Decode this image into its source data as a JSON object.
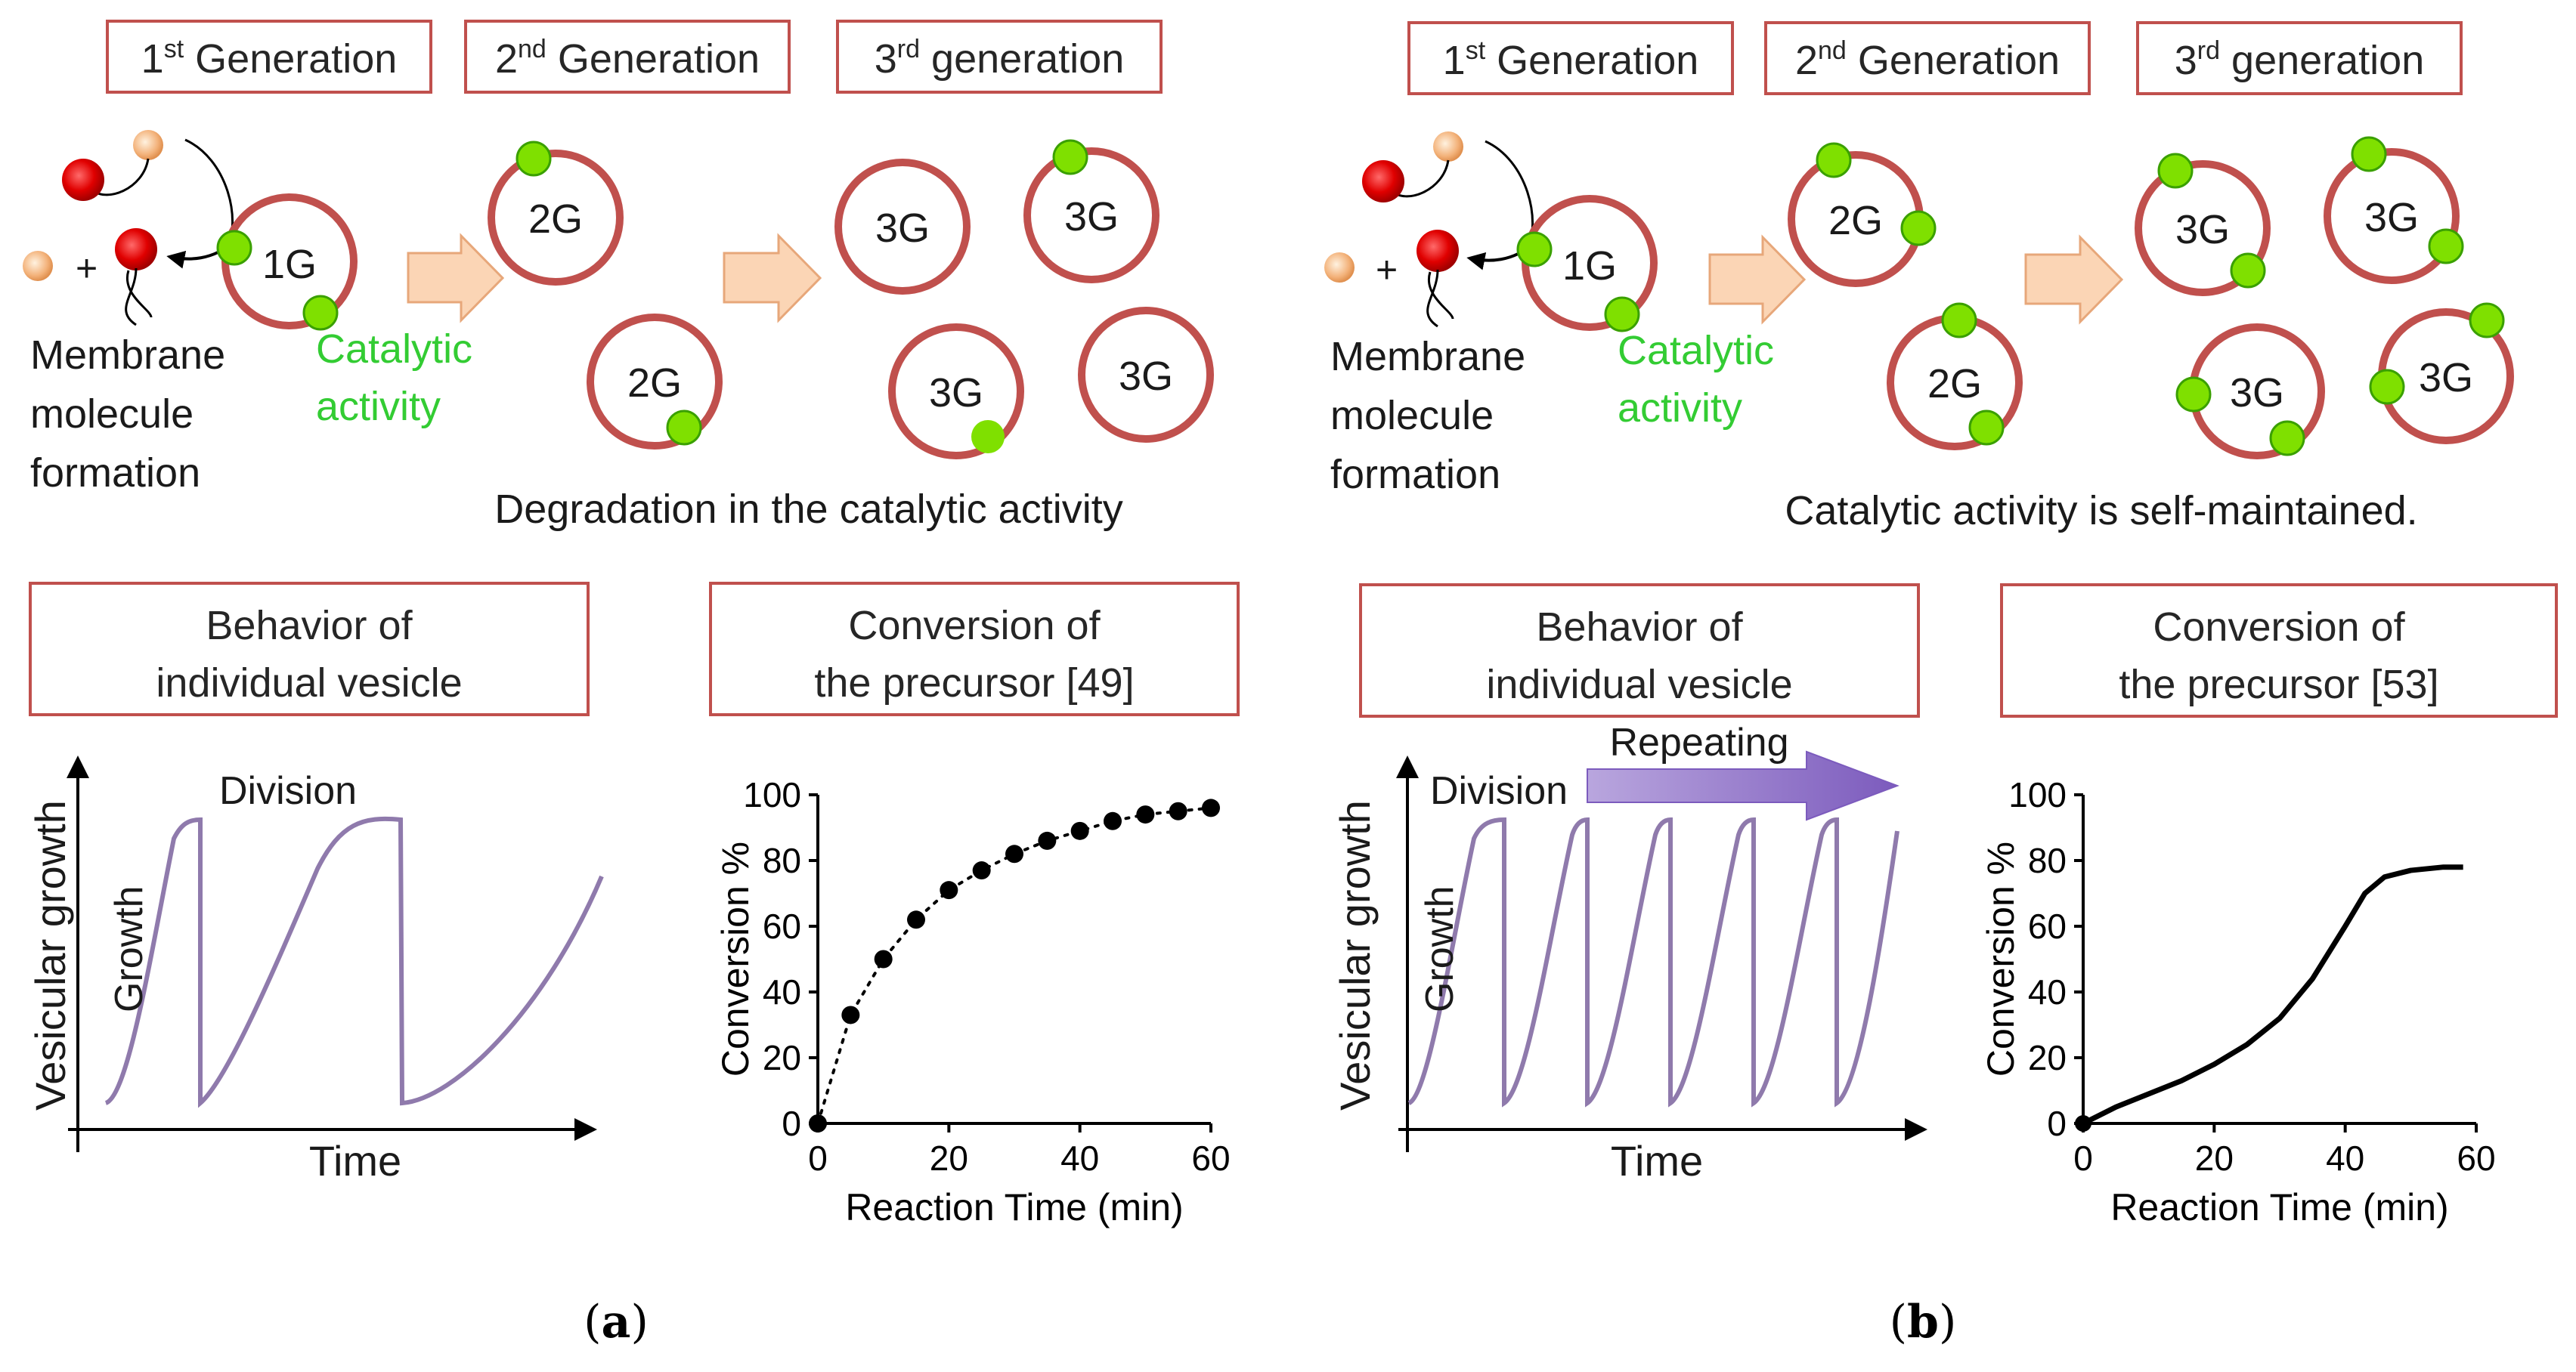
{
  "panel_a": {
    "label_open": "(",
    "label_letter": "a",
    "label_close": ")",
    "gen1": {
      "num": "1",
      "sup": "st",
      "word": " Generation"
    },
    "gen2": {
      "num": "2",
      "sup": "nd",
      "word": " Generation"
    },
    "gen3": {
      "num": "3",
      "sup": "rd",
      "word": " generation"
    },
    "membrane_lines": [
      "Membrane",
      "molecule",
      "formation"
    ],
    "catalytic_lines": [
      "Catalytic",
      "activity"
    ],
    "plus": "+",
    "v1g": "1G",
    "v2g": "2G",
    "v3g": "3G",
    "caption": "Degradation in the catalytic activity",
    "behavior_box": [
      "Behavior of",
      "individual vesicle"
    ],
    "conversion_box": [
      "Conversion of",
      "the precursor [49]"
    ],
    "division": "Division",
    "growth": "Growth",
    "y_axis": "Vesicular growth",
    "x_axis": "Time"
  },
  "panel_b": {
    "label_open": "(",
    "label_letter": "b",
    "label_close": ")",
    "gen1": {
      "num": "1",
      "sup": "st",
      "word": " Generation"
    },
    "gen2": {
      "num": "2",
      "sup": "nd",
      "word": " Generation"
    },
    "gen3": {
      "num": "3",
      "sup": "rd",
      "word": " generation"
    },
    "membrane_lines": [
      "Membrane",
      "molecule",
      "formation"
    ],
    "catalytic_lines": [
      "Catalytic",
      "activity"
    ],
    "plus": "+",
    "v1g": "1G",
    "v2g": "2G",
    "v3g": "3G",
    "caption": "Catalytic activity is self-maintained.",
    "behavior_box": [
      "Behavior of",
      "individual vesicle"
    ],
    "conversion_box": [
      "Conversion of",
      "the precursor [53]"
    ],
    "division": "Division",
    "repeating": "Repeating",
    "growth": "Growth",
    "y_axis": "Vesicular growth",
    "x_axis": "Time"
  },
  "colors": {
    "vesicle_membrane": "#c0504d",
    "catalyst": "#7fe000",
    "catalytic_text": "#33cc33",
    "growth_curve": "#8f7aac",
    "arrow_fill": "#fbd5b5",
    "repeat_arrow": "#8a6fc0"
  },
  "chart_data": [
    {
      "type": "scatter",
      "title": "",
      "xlabel": "Reaction Time (min)",
      "ylabel": "Conversion %",
      "xlim": [
        0,
        60
      ],
      "ylim": [
        0,
        100
      ],
      "xticks": [
        0,
        20,
        40,
        60
      ],
      "yticks": [
        0,
        20,
        40,
        60,
        80,
        100
      ],
      "x": [
        0,
        5,
        10,
        15,
        20,
        25,
        30,
        35,
        40,
        45,
        50,
        55,
        60
      ],
      "y": [
        0,
        33,
        50,
        62,
        71,
        77,
        82,
        86,
        89,
        92,
        94,
        95,
        96
      ],
      "fit_line": "dotted"
    },
    {
      "type": "line",
      "title": "",
      "xlabel": "Reaction Time (min)",
      "ylabel": "Conversion %",
      "xlim": [
        0,
        60
      ],
      "ylim": [
        0,
        100
      ],
      "xticks": [
        0,
        20,
        40,
        60
      ],
      "yticks": [
        0,
        20,
        40,
        60,
        80,
        100
      ],
      "x": [
        0,
        5,
        10,
        15,
        20,
        25,
        30,
        35,
        40,
        43,
        46,
        50,
        55,
        58
      ],
      "y": [
        0,
        5,
        9,
        13,
        18,
        24,
        32,
        44,
        60,
        70,
        75,
        77,
        78,
        78
      ]
    }
  ]
}
